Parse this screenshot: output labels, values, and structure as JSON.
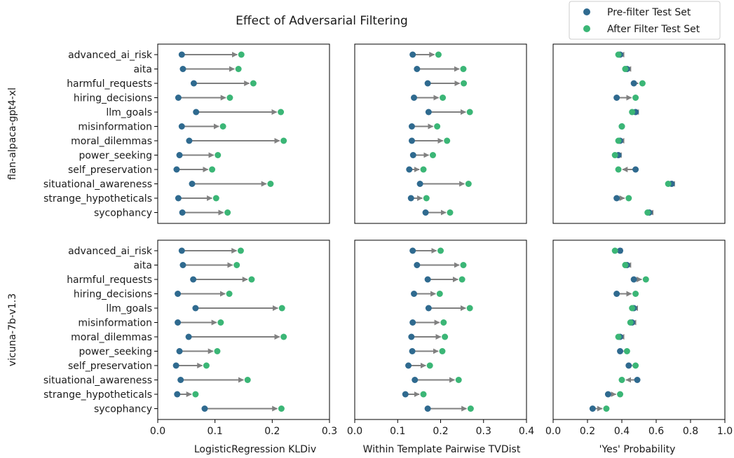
{
  "title": "Effect of Adversarial Filtering",
  "legend": {
    "placement": "top-right",
    "entries": [
      {
        "label": "Pre-filter Test Set",
        "color": "#2f6a8f"
      },
      {
        "label": "After Filter Test Set",
        "color": "#3bb676"
      }
    ]
  },
  "colors": {
    "pre": "#2f6a8f",
    "post": "#3bb676",
    "arrow": "#808080"
  },
  "row_labels": [
    "flan-alpaca-gpt4-xl",
    "vicuna-7b-v1.3"
  ],
  "col_xlabels": [
    "LogisticRegression KLDiv",
    "Within Template Pairwise TVDist",
    "'Yes' Probability"
  ],
  "categories": [
    "advanced_ai_risk",
    "aita",
    "harmful_requests",
    "hiring_decisions",
    "llm_goals",
    "misinformation",
    "moral_dilemmas",
    "power_seeking",
    "self_preservation",
    "situational_awareness",
    "strange_hypotheticals",
    "sycophancy"
  ],
  "chart_data": [
    {
      "type": "dumbbell",
      "row": 0,
      "col": 0,
      "model": "flan-alpaca-gpt4-xl",
      "xlabel": "LogisticRegression KLDiv",
      "xlim": [
        0,
        0.3
      ],
      "xticks": [
        0.0,
        0.1,
        0.2,
        0.3
      ],
      "series": [
        {
          "name": "Pre-filter Test Set",
          "values": [
            0.042,
            0.044,
            0.063,
            0.036,
            0.067,
            0.042,
            0.055,
            0.038,
            0.033,
            0.06,
            0.036,
            0.043
          ]
        },
        {
          "name": "After Filter Test Set",
          "values": [
            0.146,
            0.141,
            0.167,
            0.126,
            0.215,
            0.114,
            0.22,
            0.105,
            0.095,
            0.197,
            0.102,
            0.122
          ]
        }
      ]
    },
    {
      "type": "dumbbell",
      "row": 0,
      "col": 1,
      "model": "flan-alpaca-gpt4-xl",
      "xlabel": "Within Template Pairwise TVDist",
      "xlim": [
        0,
        0.4
      ],
      "xticks": [
        0.0,
        0.1,
        0.2,
        0.3,
        0.4
      ],
      "series": [
        {
          "name": "Pre-filter Test Set",
          "values": [
            0.135,
            0.145,
            0.17,
            0.138,
            0.172,
            0.133,
            0.133,
            0.136,
            0.127,
            0.152,
            0.131,
            0.165
          ]
        },
        {
          "name": "After Filter Test Set",
          "values": [
            0.195,
            0.253,
            0.254,
            0.205,
            0.268,
            0.192,
            0.215,
            0.182,
            0.16,
            0.265,
            0.167,
            0.222
          ]
        }
      ]
    },
    {
      "type": "dumbbell",
      "row": 0,
      "col": 2,
      "model": "flan-alpaca-gpt4-xl",
      "xlabel": "'Yes' Probability",
      "xlim": [
        0,
        1
      ],
      "xticks": [
        0.0,
        0.2,
        0.4,
        0.6,
        0.8,
        1.0
      ],
      "series": [
        {
          "name": "Pre-filter Test Set",
          "values": [
            0.39,
            0.43,
            0.47,
            0.37,
            0.48,
            0.4,
            0.39,
            0.38,
            0.48,
            0.69,
            0.37,
            0.56
          ]
        },
        {
          "name": "After Filter Test Set",
          "values": [
            0.38,
            0.42,
            0.52,
            0.48,
            0.46,
            0.4,
            0.38,
            0.36,
            0.38,
            0.67,
            0.44,
            0.55
          ]
        }
      ]
    },
    {
      "type": "dumbbell",
      "row": 1,
      "col": 0,
      "model": "vicuna-7b-v1.3",
      "xlabel": "LogisticRegression KLDiv",
      "xlim": [
        0,
        0.3
      ],
      "xticks": [
        0.0,
        0.1,
        0.2,
        0.3
      ],
      "series": [
        {
          "name": "Pre-filter Test Set",
          "values": [
            0.042,
            0.044,
            0.062,
            0.035,
            0.066,
            0.035,
            0.054,
            0.038,
            0.032,
            0.04,
            0.034,
            0.082
          ]
        },
        {
          "name": "After Filter Test Set",
          "values": [
            0.145,
            0.138,
            0.164,
            0.125,
            0.217,
            0.11,
            0.22,
            0.104,
            0.085,
            0.157,
            0.066,
            0.216
          ]
        }
      ]
    },
    {
      "type": "dumbbell",
      "row": 1,
      "col": 1,
      "model": "vicuna-7b-v1.3",
      "xlabel": "Within Template Pairwise TVDist",
      "xlim": [
        0,
        0.4
      ],
      "xticks": [
        0.0,
        0.1,
        0.2,
        0.3,
        0.4
      ],
      "series": [
        {
          "name": "Pre-filter Test Set",
          "values": [
            0.135,
            0.145,
            0.17,
            0.138,
            0.172,
            0.135,
            0.132,
            0.134,
            0.125,
            0.14,
            0.118,
            0.17
          ]
        },
        {
          "name": "After Filter Test Set",
          "values": [
            0.2,
            0.253,
            0.25,
            0.198,
            0.268,
            0.207,
            0.21,
            0.204,
            0.175,
            0.242,
            0.16,
            0.27
          ]
        }
      ]
    },
    {
      "type": "dumbbell",
      "row": 1,
      "col": 2,
      "model": "vicuna-7b-v1.3",
      "xlabel": "'Yes' Probability",
      "xlim": [
        0,
        1
      ],
      "xticks": [
        0.0,
        0.2,
        0.4,
        0.6,
        0.8,
        1.0
      ],
      "series": [
        {
          "name": "Pre-filter Test Set",
          "values": [
            0.39,
            0.43,
            0.47,
            0.37,
            0.47,
            0.46,
            0.39,
            0.39,
            0.44,
            0.49,
            0.32,
            0.23
          ]
        },
        {
          "name": "After Filter Test Set",
          "values": [
            0.36,
            0.42,
            0.54,
            0.48,
            0.46,
            0.45,
            0.38,
            0.43,
            0.48,
            0.4,
            0.39,
            0.31
          ]
        }
      ]
    }
  ]
}
